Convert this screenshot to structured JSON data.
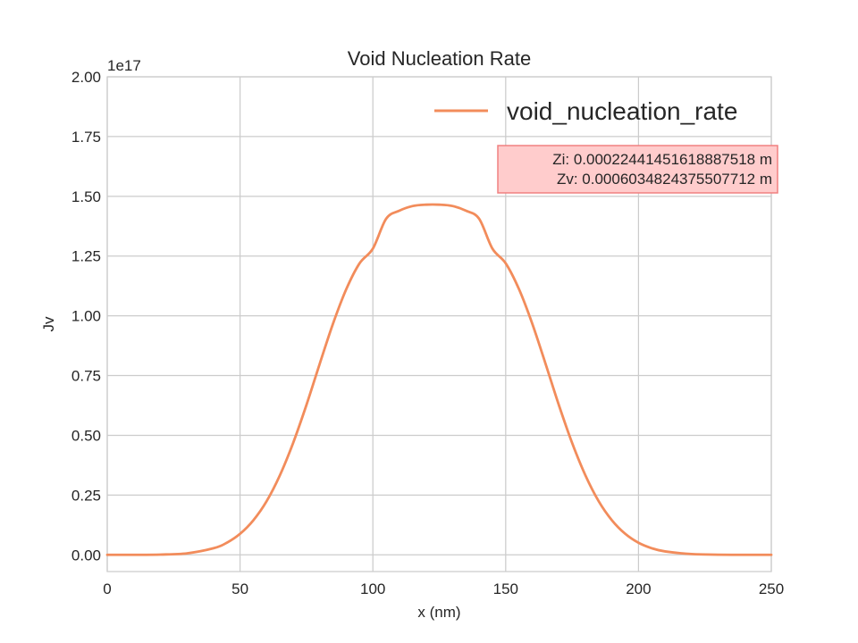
{
  "chart_data": {
    "type": "line",
    "title": "Void Nucleation Rate",
    "xlabel": "x (nm)",
    "ylabel": "Jv",
    "y_offset_label": "1e17",
    "y_scale": 1e+17,
    "xlim": [
      0,
      250
    ],
    "ylim": [
      -0.07,
      2.0
    ],
    "x_ticks": [
      0,
      50,
      100,
      150,
      200,
      250
    ],
    "x_tick_labels": [
      "0",
      "50",
      "100",
      "150",
      "200",
      "250"
    ],
    "y_ticks": [
      0,
      0.25,
      0.5,
      0.75,
      1.0,
      1.25,
      1.5,
      1.75,
      2.0
    ],
    "y_tick_labels": [
      "0.00",
      "0.25",
      "0.50",
      "0.75",
      "1.00",
      "1.25",
      "1.50",
      "1.75",
      "2.00"
    ],
    "grid": true,
    "legend": {
      "placement": "top-right"
    },
    "annotation": {
      "lines": [
        "Zi: 0.00022441451618887518 m",
        "Zv: 0.0006034824375507712 m"
      ],
      "placement": "upper-right",
      "background": "#ffcccc",
      "border": "#f08080"
    },
    "series": [
      {
        "name": "void_nucleation_rate",
        "color": "#f28c5b",
        "x": [
          0,
          10,
          20,
          30,
          40,
          45,
          50,
          55,
          60,
          65,
          70,
          75,
          80,
          85,
          90,
          95,
          100,
          105,
          110,
          115,
          120,
          125,
          130,
          135,
          140,
          145,
          150,
          155,
          160,
          165,
          170,
          175,
          180,
          185,
          190,
          195,
          200,
          205,
          210,
          220,
          230,
          240,
          250
        ],
        "y": [
          0.0,
          0.0001,
          0.0011,
          0.0063,
          0.0275,
          0.0504,
          0.0879,
          0.1445,
          0.2245,
          0.3329,
          0.4687,
          0.6273,
          0.7996,
          0.9673,
          1.1117,
          1.2198,
          1.2813,
          1.406,
          1.44,
          1.4594,
          1.465,
          1.465,
          1.4594,
          1.44,
          1.406,
          1.2813,
          1.2198,
          1.1117,
          0.9673,
          0.7996,
          0.6273,
          0.4687,
          0.3329,
          0.2245,
          0.1445,
          0.0879,
          0.0504,
          0.0275,
          0.0143,
          0.0032,
          0.0006,
          0.0001,
          0.0
        ]
      }
    ]
  }
}
